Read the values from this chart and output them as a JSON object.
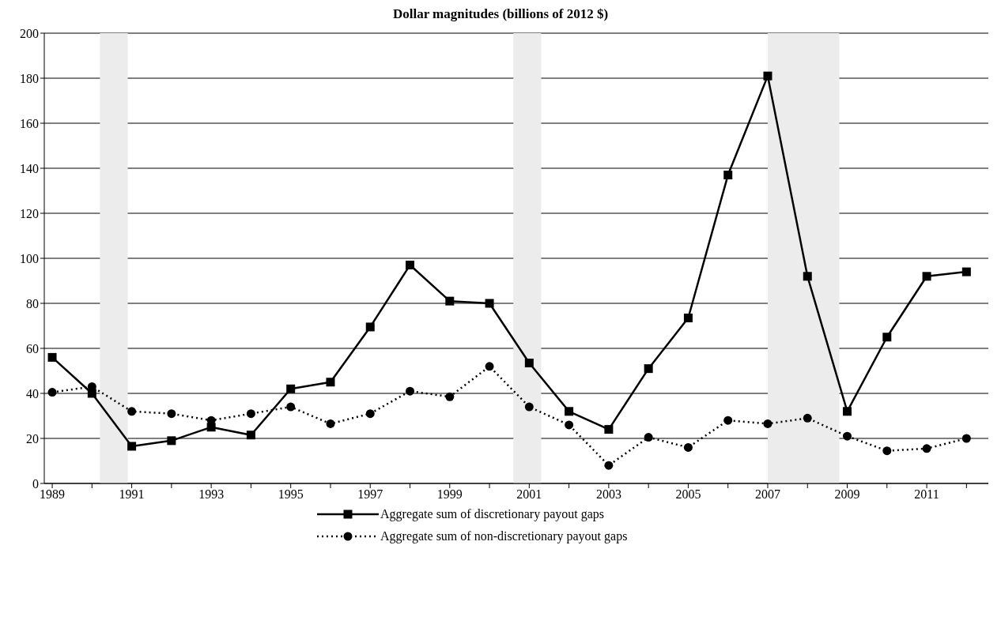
{
  "chart_data": {
    "type": "line",
    "title": "Dollar magnitudes (billions of 2012 $)",
    "x": [
      1989,
      1990,
      1991,
      1992,
      1993,
      1994,
      1995,
      1996,
      1997,
      1998,
      1999,
      2000,
      2001,
      2002,
      2003,
      2004,
      2005,
      2006,
      2007,
      2008,
      2009,
      2010,
      2011,
      2012
    ],
    "series": [
      {
        "name": "Aggregate sum of discretionary payout gaps",
        "color": "#000000",
        "marker": "square",
        "line_style": "solid",
        "values": [
          56,
          40,
          16.5,
          19,
          25,
          21.5,
          42,
          45,
          69.5,
          97,
          81,
          80,
          53.5,
          32,
          24,
          51,
          73.5,
          137,
          181,
          92,
          32,
          65,
          92,
          94
        ]
      },
      {
        "name": "Aggregate sum of non-discretionary payout gaps",
        "color": "#000000",
        "marker": "circle",
        "line_style": "dotted",
        "values": [
          40.5,
          43,
          32,
          31,
          28,
          31,
          34,
          26.5,
          31,
          41,
          38.5,
          52,
          34,
          26,
          8,
          20.5,
          16,
          28,
          26.5,
          29,
          21,
          14.5,
          15.5,
          20
        ]
      }
    ],
    "xlim": [
      1988.8,
      2012.55
    ],
    "xticks": [
      1989,
      {
        "value": 1990,
        "label": null
      },
      1991,
      {
        "value": 1992,
        "label": null
      },
      1993,
      {
        "value": 1994,
        "label": null
      },
      1995,
      {
        "value": 1996,
        "label": null
      },
      1997,
      {
        "value": 1998,
        "label": null
      },
      1999,
      {
        "value": 2000,
        "label": null
      },
      2001,
      {
        "value": 2002,
        "label": null
      },
      2003,
      {
        "value": 2004,
        "label": null
      },
      2005,
      {
        "value": 2006,
        "label": null
      },
      2007,
      {
        "value": 2008,
        "label": null
      },
      2009,
      {
        "value": 2010,
        "label": null
      },
      2011,
      {
        "value": 2012,
        "label": null
      }
    ],
    "ylim": [
      0,
      200
    ],
    "yticks": [
      0,
      20,
      40,
      60,
      80,
      100,
      120,
      140,
      160,
      180,
      200
    ],
    "grid": "y",
    "legend": "bottom",
    "bands": [
      {
        "axis": "x",
        "from": 1990.2,
        "to": 1990.9,
        "color": "#ececec"
      },
      {
        "axis": "x",
        "from": 2000.6,
        "to": 2001.3,
        "color": "#ececec"
      },
      {
        "axis": "x",
        "from": 2007.0,
        "to": 2008.8,
        "color": "#ececec"
      }
    ]
  }
}
